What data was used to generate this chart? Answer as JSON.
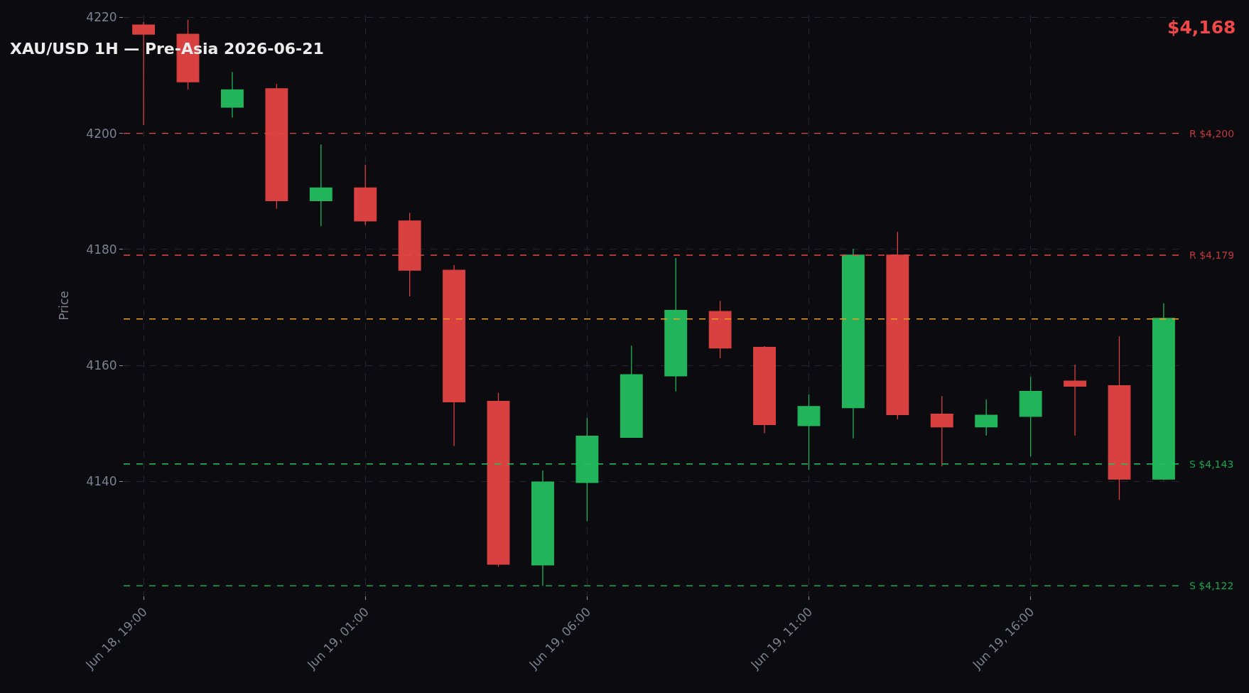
{
  "chart_data": {
    "type": "candlestick",
    "title": "XAU/USD 1H — Pre-Asia 2026-06-21",
    "ylabel": "Price",
    "categories": [
      "Jun 18, 19:00",
      null,
      null,
      null,
      null,
      "Jun 19, 01:00",
      null,
      null,
      null,
      null,
      "Jun 19, 06:00",
      null,
      null,
      null,
      null,
      "Jun 19, 11:00",
      null,
      null,
      null,
      null,
      "Jun 19, 16:00",
      null,
      null,
      null
    ],
    "ohlc": [
      [
        4218.7,
        4219.2,
        4201.4,
        4217.1
      ],
      [
        4217.1,
        4219.6,
        4207.6,
        4208.9
      ],
      [
        4204.5,
        4210.6,
        4202.7,
        4207.5
      ],
      [
        4207.7,
        4208.5,
        4187.0,
        4188.4
      ],
      [
        4188.4,
        4198.1,
        4184.0,
        4190.6
      ],
      [
        4190.6,
        4194.6,
        4184.2,
        4184.9
      ],
      [
        4184.9,
        4186.3,
        4171.9,
        4176.4
      ],
      [
        4176.4,
        4177.3,
        4146.1,
        4153.7
      ],
      [
        4153.8,
        4155.3,
        4125.3,
        4125.7
      ],
      [
        4125.6,
        4141.9,
        4122.0,
        4139.9
      ],
      [
        4139.8,
        4150.9,
        4133.1,
        4147.8
      ],
      [
        4147.6,
        4163.4,
        4147.6,
        4158.4
      ],
      [
        4158.2,
        4178.5,
        4155.5,
        4169.5
      ],
      [
        4169.3,
        4171.1,
        4161.2,
        4163.0
      ],
      [
        4163.1,
        4163.3,
        4148.3,
        4149.8
      ],
      [
        4149.6,
        4155.0,
        4142.0,
        4152.9
      ],
      [
        4152.7,
        4180.1,
        4147.4,
        4179.0
      ],
      [
        4179.0,
        4183.0,
        4150.7,
        4151.5
      ],
      [
        4151.6,
        4154.7,
        4142.6,
        4149.4
      ],
      [
        4149.4,
        4154.1,
        4147.9,
        4151.4
      ],
      [
        4151.2,
        4158.0,
        4144.3,
        4155.5
      ],
      [
        4157.3,
        4160.1,
        4147.9,
        4156.4
      ],
      [
        4156.5,
        4165.0,
        4136.8,
        4140.4
      ],
      [
        4140.4,
        4170.7,
        4140.2,
        4168.1
      ]
    ],
    "colors": [
      "#d94040",
      "#d94040",
      "#22b45a",
      "#d94040",
      "#22b45a",
      "#d94040",
      "#d94040",
      "#d94040",
      "#d94040",
      "#22b45a",
      "#22b45a",
      "#22b45a",
      "#22b45a",
      "#d94040",
      "#d94040",
      "#22b45a",
      "#22b45a",
      "#d94040",
      "#d94040",
      "#22b45a",
      "#22b45a",
      "#d94040",
      "#d94040",
      "#22b45a"
    ],
    "ylim": [
      4120.3,
      4220.3
    ],
    "yticks": [
      4140,
      4160,
      4180,
      4200,
      4220
    ],
    "grid": true,
    "ref_lines": [
      {
        "axis": "y",
        "value": 4200,
        "label": "R $4,200",
        "color": "#e84545",
        "line_style": "dashed"
      },
      {
        "axis": "y",
        "value": 4179,
        "label": "R $4,179",
        "color": "#e84545",
        "line_style": "dashed"
      },
      {
        "axis": "y",
        "value": 4168,
        "color": "#f0a020",
        "line_style": "dashed"
      },
      {
        "axis": "y",
        "value": 4143,
        "label": "S $4,143",
        "color": "#22c55e",
        "line_style": "dashed"
      },
      {
        "axis": "y",
        "value": 4122,
        "label": "S $4,122",
        "color": "#22c55e",
        "line_style": "dashed"
      }
    ],
    "annotations": [
      "$4,168"
    ]
  }
}
